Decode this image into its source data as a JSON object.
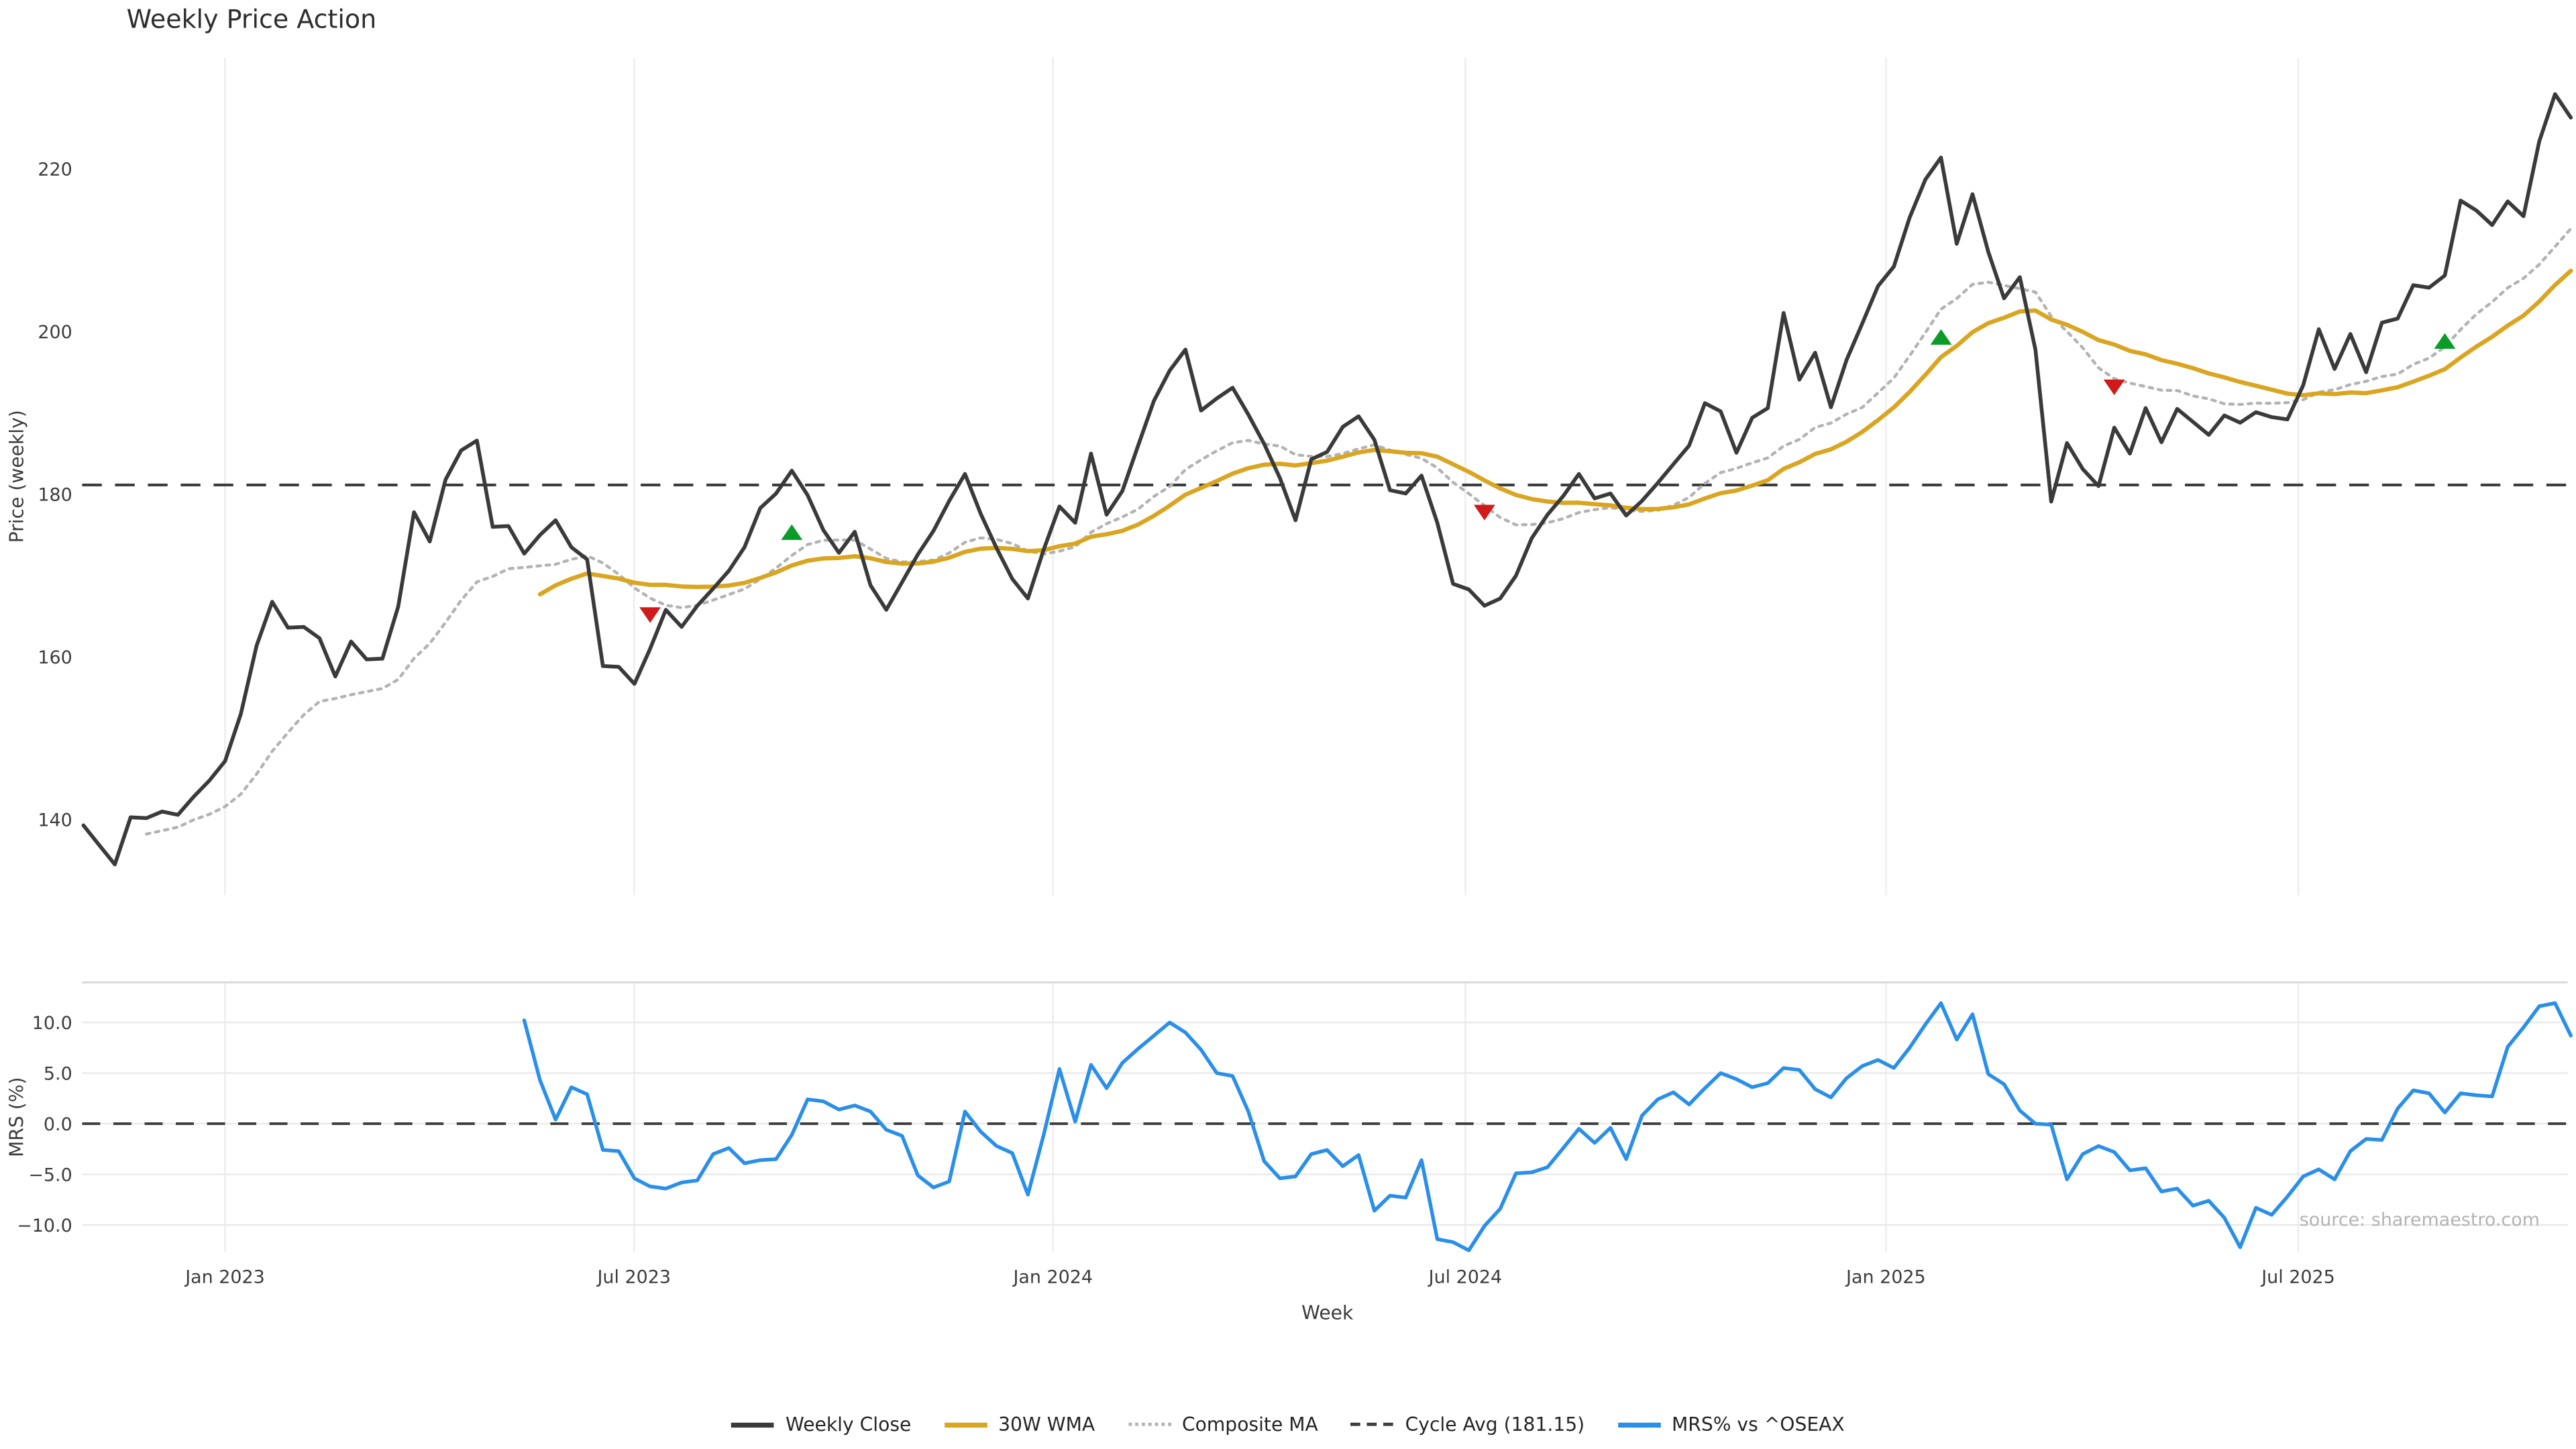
{
  "title": "Weekly Price Action",
  "source_note": "source: sharemaestro.com",
  "axes": {
    "price_ylabel": "Price (weekly)",
    "mrs_ylabel": "MRS (%)",
    "xlabel": "Week",
    "price_tick_labels": [
      "220",
      "200",
      "180",
      "160",
      "140"
    ],
    "mrs_tick_labels": [
      "10.0",
      "5.0",
      "0.0",
      "−5.0",
      "−10.0"
    ],
    "x_tick_labels": [
      "Jan 2023",
      "Jul 2023",
      "Jan 2024",
      "Jul 2024",
      "Jan 2025",
      "Jul 2025"
    ]
  },
  "legend": {
    "weekly_close": "Weekly Close",
    "wma": "30W WMA",
    "composite": "Composite MA",
    "cycle_avg": "Cycle Avg (181.15)",
    "mrs": "MRS% vs ^OSEAX"
  },
  "colors": {
    "close": "#3a3a3a",
    "wma": "#DAA520",
    "composite": "#b3b3b3",
    "cycle": "#3d3d3d",
    "mrs": "#2a8fe8",
    "buy_marker": "#0a9b28",
    "sell_marker": "#d01a1a",
    "grid": "#ededed",
    "panel_border": "#d8d8d8",
    "tick_text": "#3c3c3c"
  },
  "chart_data": {
    "type": "line",
    "title": "Weekly Price Action",
    "xlabel": "Week",
    "x_start_date": "2022-10-30",
    "x_step_weeks": 1,
    "x_tick_labels": [
      "Jan 2023",
      "Jul 2023",
      "Jan 2024",
      "Jul 2024",
      "Jan 2025",
      "Jul 2025"
    ],
    "price_panel": {
      "ylabel": "Price (weekly)",
      "ylim": [
        130.7,
        233.7
      ],
      "yticks": [
        140,
        160,
        180,
        200,
        220
      ],
      "cycle_avg": 181.15,
      "series": [
        {
          "name": "Weekly Close",
          "style": "solid",
          "start_week": 0,
          "values": [
            139.3,
            136.9,
            134.5,
            140.3,
            140.2,
            141.0,
            140.6,
            142.8,
            144.8,
            147.2,
            153.0,
            161.4,
            166.8,
            163.6,
            163.7,
            162.3,
            157.6,
            161.9,
            159.7,
            159.8,
            166.2,
            177.8,
            174.2,
            181.8,
            185.4,
            186.6,
            176.0,
            176.1,
            172.7,
            175.0,
            176.8,
            173.5,
            172.0,
            158.9,
            158.8,
            156.7,
            161.0,
            165.8,
            163.7,
            166.3,
            168.4,
            170.6,
            173.5,
            178.3,
            180.1,
            182.9,
            179.9,
            175.6,
            172.8,
            175.4,
            168.8,
            165.8,
            169.2,
            172.6,
            175.5,
            179.2,
            182.5,
            177.6,
            173.4,
            169.6,
            167.2,
            173.2,
            178.5,
            176.5,
            185.0,
            177.5,
            180.4,
            186.0,
            191.5,
            195.2,
            197.8,
            190.3,
            191.8,
            193.1,
            189.8,
            186.2,
            182.0,
            176.8,
            184.3,
            185.2,
            188.3,
            189.6,
            186.7,
            180.5,
            180.1,
            182.3,
            176.5,
            169.0,
            168.3,
            166.3,
            167.2,
            170.0,
            174.6,
            177.5,
            179.8,
            182.5,
            179.5,
            180.1,
            177.4,
            179.2,
            181.4,
            183.7,
            186.0,
            191.2,
            190.2,
            185.1,
            189.4,
            190.6,
            202.3,
            194.1,
            197.4,
            190.7,
            196.5,
            201.0,
            205.6,
            208.0,
            214.0,
            218.7,
            221.4,
            210.8,
            216.9,
            209.8,
            204.1,
            206.7,
            197.8,
            179.1,
            186.3,
            183.1,
            181.0,
            188.2,
            185.0,
            190.6,
            186.4,
            190.5,
            188.9,
            187.3,
            189.7,
            188.8,
            190.1,
            189.5,
            189.2,
            193.4,
            200.3,
            195.4,
            199.7,
            195.0,
            201.1,
            201.6,
            205.7,
            205.4,
            206.9,
            216.1,
            214.9,
            213.1,
            216.0,
            214.2,
            223.4,
            229.2,
            226.3
          ]
        },
        {
          "name": "30W WMA",
          "style": "solid",
          "derived": "linearly-weighted moving average of Weekly Close, window 30"
        },
        {
          "name": "Composite MA",
          "style": "dotted",
          "derived": "mean of 5/13/26-week simple moving averages of Weekly Close"
        },
        {
          "name": "Cycle Avg (181.15)",
          "style": "dashed",
          "value": 181.15
        }
      ],
      "markers": {
        "buy": [
          {
            "week": 45,
            "y": 175.3
          },
          {
            "week": 118,
            "y": 199.3
          },
          {
            "week": 150,
            "y": 198.8
          }
        ],
        "sell": [
          {
            "week": 36,
            "y": 165.2
          },
          {
            "week": 89,
            "y": 177.8
          },
          {
            "week": 129,
            "y": 193.2
          }
        ]
      }
    },
    "mrs_panel": {
      "ylabel": "MRS (%)",
      "ylim": [
        -12.65,
        13.95
      ],
      "yticks": [
        10.0,
        5.0,
        0.0,
        -5.0,
        -10.0
      ],
      "zero_line": 0.0,
      "series": [
        {
          "name": "MRS% vs ^OSEAX",
          "style": "solid",
          "start_week": 28,
          "values": [
            10.2,
            4.3,
            0.4,
            3.6,
            2.9,
            -2.6,
            -2.7,
            -5.4,
            -6.2,
            -6.4,
            -5.8,
            -5.6,
            -3.0,
            -2.4,
            -3.9,
            -3.6,
            -3.5,
            -1.1,
            2.4,
            2.2,
            1.4,
            1.8,
            1.2,
            -0.6,
            -1.2,
            -5.1,
            -6.3,
            -5.7,
            1.2,
            -0.8,
            -2.2,
            -2.9,
            -7.0,
            -1.1,
            5.4,
            0.2,
            5.8,
            3.5,
            6.0,
            7.4,
            8.7,
            10.0,
            9.0,
            7.3,
            5.0,
            4.7,
            1.2,
            -3.7,
            -5.4,
            -5.2,
            -3.0,
            -2.6,
            -4.2,
            -3.1,
            -8.6,
            -7.1,
            -7.3,
            -3.6,
            -11.4,
            -11.7,
            -12.5,
            -10.1,
            -8.4,
            -4.9,
            -4.8,
            -4.3,
            -2.4,
            -0.5,
            -1.9,
            -0.4,
            -3.5,
            0.8,
            2.4,
            3.1,
            1.9,
            3.5,
            5.0,
            4.4,
            3.6,
            4.0,
            5.5,
            5.3,
            3.4,
            2.6,
            4.5,
            5.7,
            6.3,
            5.5,
            7.5,
            9.8,
            11.9,
            8.3,
            10.8,
            4.9,
            3.9,
            1.3,
            0.0,
            -0.1,
            -5.5,
            -3.0,
            -2.2,
            -2.8,
            -4.6,
            -4.4,
            -6.7,
            -6.4,
            -8.1,
            -7.6,
            -9.3,
            -12.2,
            -8.3,
            -9.0,
            -7.2,
            -5.2,
            -4.5,
            -5.5,
            -2.7,
            -1.5,
            -1.6,
            1.5,
            3.3,
            3.0,
            1.1,
            3.0,
            2.8,
            2.7,
            7.6,
            9.5,
            11.6,
            11.9,
            8.7
          ]
        }
      ]
    }
  }
}
